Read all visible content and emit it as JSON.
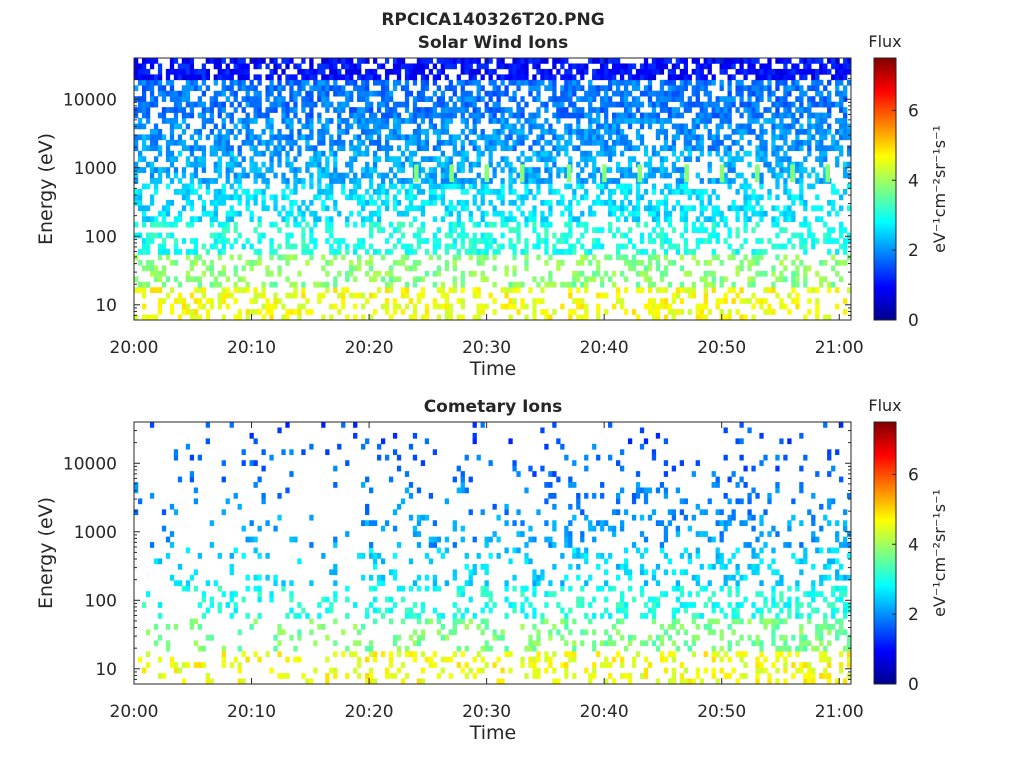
{
  "figure": {
    "title": "RPCICA140326T20.PNG"
  },
  "chart_data": [
    {
      "type": "heatmap",
      "title": "Solar Wind Ions",
      "xlabel": "Time",
      "ylabel": "Energy (eV)",
      "x_ticks": [
        "20:00",
        "20:10",
        "20:20",
        "20:30",
        "20:40",
        "20:50",
        "21:00"
      ],
      "x_range": [
        "20:00",
        "21:01"
      ],
      "y_scale": "log",
      "y_ticks": [
        10,
        100,
        1000,
        10000
      ],
      "y_range": [
        6,
        40000
      ],
      "colorbar": {
        "title": "Flux",
        "label": "eV-1cm-2sr-1s-1",
        "ticks": [
          0,
          2,
          4,
          6
        ],
        "range": [
          0,
          7.5
        ],
        "colormap": "jet"
      },
      "energy_bands": [
        {
          "energy": 10,
          "flux": 4.6,
          "occupancy": 0.35
        },
        {
          "energy": 30,
          "flux": 3.8,
          "occupancy": 0.35
        },
        {
          "energy": 100,
          "flux": 3.0,
          "occupancy": 0.4
        },
        {
          "energy": 300,
          "flux": 2.6,
          "occupancy": 0.45
        },
        {
          "energy": 1000,
          "flux": 2.2,
          "occupancy": 0.5
        },
        {
          "energy": 3000,
          "flux": 2.0,
          "occupancy": 0.6
        },
        {
          "energy": 10000,
          "flux": 1.8,
          "occupancy": 0.65
        },
        {
          "energy": 35000,
          "flux": 1.0,
          "occupancy": 0.7
        }
      ],
      "periodic_features": {
        "energy": 800,
        "flux": 3.8,
        "times": [
          "20:24",
          "20:27",
          "20:30",
          "20:33",
          "20:37",
          "20:40",
          "20:43",
          "20:47",
          "20:50",
          "20:53",
          "20:56",
          "20:59"
        ]
      }
    },
    {
      "type": "heatmap",
      "title": "Cometary Ions",
      "xlabel": "Time",
      "ylabel": "Energy (eV)",
      "x_ticks": [
        "20:00",
        "20:10",
        "20:20",
        "20:30",
        "20:40",
        "20:50",
        "21:00"
      ],
      "x_range": [
        "20:00",
        "21:01"
      ],
      "y_scale": "log",
      "y_ticks": [
        10,
        100,
        1000,
        10000
      ],
      "y_range": [
        6,
        40000
      ],
      "colorbar": {
        "title": "Flux",
        "label": "eV-1cm-2sr-1s-1",
        "ticks": [
          0,
          2,
          4,
          6
        ],
        "range": [
          0,
          7.5
        ],
        "colormap": "jet"
      },
      "energy_bands": [
        {
          "energy": 10,
          "flux": 4.6,
          "occupancy": 0.25
        },
        {
          "energy": 30,
          "flux": 3.7,
          "occupancy": 0.25
        },
        {
          "energy": 100,
          "flux": 3.0,
          "occupancy": 0.25
        },
        {
          "energy": 300,
          "flux": 2.5,
          "occupancy": 0.2
        },
        {
          "energy": 1000,
          "flux": 2.1,
          "occupancy": 0.15
        },
        {
          "energy": 3000,
          "flux": 1.9,
          "occupancy": 0.12
        },
        {
          "energy": 10000,
          "flux": 1.7,
          "occupancy": 0.08
        },
        {
          "energy": 35000,
          "flux": 1.5,
          "occupancy": 0.05
        }
      ],
      "periodic_features": null
    }
  ]
}
